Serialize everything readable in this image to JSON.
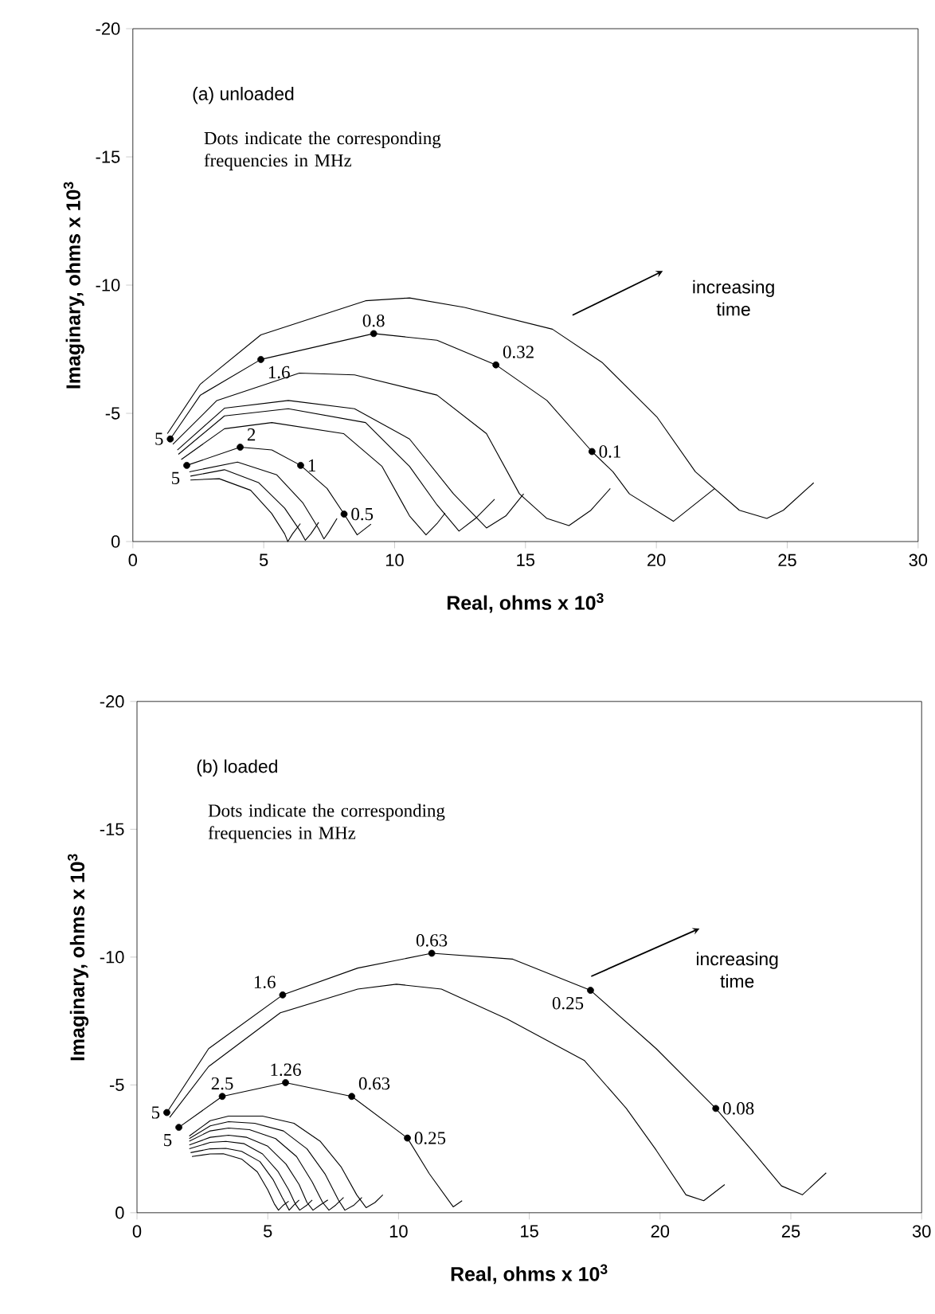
{
  "chart_data": [
    {
      "type": "line",
      "xlabel": "Real, ohms x 10$^{3}$",
      "ylabel": "Imaginary, ohms x 10$^{3}$",
      "xlim": [
        0,
        30
      ],
      "ylim": [
        0,
        -20
      ],
      "xticks": [
        0,
        5,
        10,
        15,
        20,
        25,
        30
      ],
      "yticks": [
        -20,
        -15,
        -10,
        -5,
        0
      ],
      "annotations": [
        "(a) unloaded",
        "Dots indicate the corresponding frequencies in MHz",
        "increasing time",
        {
          "text": "5",
          "x": 1.43,
          "y": -4.0
        },
        {
          "text": "1.6",
          "x": 4.89,
          "y": -7.1
        },
        {
          "text": "0.8",
          "x": 9.2,
          "y": -8.11
        },
        {
          "text": "0.32",
          "x": 13.87,
          "y": -6.89
        },
        {
          "text": "0.1",
          "x": 17.54,
          "y": -3.51
        },
        {
          "text": "2",
          "x": 4.1,
          "y": -3.68
        },
        {
          "text": "1",
          "x": 6.41,
          "y": -2.97
        },
        {
          "text": "0.5",
          "x": 8.07,
          "y": -1.07
        },
        {
          "text": "5",
          "x": 2.06,
          "y": -2.97
        }
      ],
      "series": [
        {
          "color": "#000000",
          "x": [
            1.32,
            2.58,
            4.89,
            8.89,
            10.57,
            12.67,
            16.03,
            17.92,
            20.02,
            21.49,
            23.17,
            24.22,
            24.85,
            26.01
          ],
          "values": [
            -4.21,
            -6.14,
            -8.06,
            -9.39,
            -9.5,
            -9.13,
            -8.28,
            -6.99,
            -4.86,
            -2.72,
            -1.22,
            -0.9,
            -1.22,
            -2.29
          ]
        },
        {
          "color": "#000000",
          "x": [
            1.43,
            2.58,
            4.89,
            9.2,
            11.62,
            13.87,
            15.82,
            17.54,
            18.34,
            18.97,
            20.65,
            22.23
          ],
          "values": [
            -4.0,
            -5.71,
            -7.1,
            -8.11,
            -7.85,
            -6.89,
            -5.5,
            -3.51,
            -2.72,
            -1.86,
            -0.79,
            -2.07
          ]
        },
        {
          "color": "#000000",
          "x": [
            1.53,
            3.21,
            6.36,
            8.47,
            11.62,
            13.51,
            14.77,
            15.82,
            16.66,
            17.5,
            18.24
          ],
          "values": [
            -3.79,
            -5.5,
            -6.57,
            -6.5,
            -5.71,
            -4.21,
            -1.86,
            -0.9,
            -0.62,
            -1.22,
            -2.07
          ]
        },
        {
          "color": "#000000",
          "x": [
            1.7,
            3.5,
            5.94,
            8.47,
            10.57,
            12.25,
            13.51,
            14.25,
            14.93
          ],
          "values": [
            -3.57,
            -5.2,
            -5.5,
            -5.18,
            -4.0,
            -1.86,
            -0.53,
            -1.0,
            -1.86
          ]
        },
        {
          "color": "#000000",
          "x": [
            1.74,
            3.5,
            5.94,
            8.89,
            10.57,
            11.62,
            12.46,
            13.09,
            13.82
          ],
          "values": [
            -3.4,
            -4.9,
            -5.18,
            -4.64,
            -2.93,
            -1.43,
            -0.41,
            -0.9,
            -1.65
          ]
        },
        {
          "color": "#000000",
          "x": [
            1.85,
            3.5,
            5.31,
            8.05,
            9.52,
            10.57,
            11.2,
            11.62,
            11.93
          ],
          "values": [
            -3.2,
            -4.4,
            -4.64,
            -4.21,
            -2.93,
            -1.0,
            -0.26,
            -0.7,
            -1.11
          ]
        },
        {
          "color": "#000000",
          "x": [
            2.06,
            4.1,
            5.31,
            6.41,
            7.42,
            8.07,
            8.57,
            9.1
          ],
          "values": [
            -2.97,
            -3.68,
            -3.57,
            -2.97,
            -2.07,
            -1.07,
            -0.26,
            -0.68
          ]
        },
        {
          "color": "#000000",
          "x": [
            2.16,
            4.0,
            5.5,
            6.5,
            7.1,
            7.3,
            7.5,
            7.8
          ],
          "values": [
            -2.72,
            -3.1,
            -2.6,
            -1.5,
            -0.5,
            -0.1,
            -0.4,
            -0.9
          ]
        },
        {
          "color": "#000000",
          "x": [
            2.2,
            3.5,
            4.8,
            5.8,
            6.4,
            6.59,
            6.8,
            7.1
          ],
          "values": [
            -2.55,
            -2.8,
            -2.3,
            -1.3,
            -0.4,
            -0.05,
            -0.3,
            -0.75
          ]
        },
        {
          "color": "#000000",
          "x": [
            2.2,
            3.3,
            4.5,
            5.3,
            5.8,
            5.92,
            6.1,
            6.4
          ],
          "values": [
            -2.4,
            -2.45,
            -2.0,
            -1.1,
            -0.3,
            0,
            -0.3,
            -0.7
          ]
        },
        {
          "type": "scatter",
          "color": "#000000",
          "x": [
            1.43,
            4.89,
            9.2,
            13.87,
            17.54,
            2.06,
            4.1,
            6.41,
            8.07
          ],
          "values": [
            -4.0,
            -7.1,
            -8.11,
            -6.89,
            -3.51,
            -2.97,
            -3.68,
            -2.97,
            -1.07
          ]
        }
      ]
    },
    {
      "type": "line",
      "xlabel": "Real, ohms x 10$^{3}$",
      "ylabel": "Imaginary, ohms x 10$^{3}$",
      "xlim": [
        0,
        30
      ],
      "ylim": [
        0,
        -20
      ],
      "xticks": [
        0,
        5,
        10,
        15,
        20,
        25,
        30
      ],
      "yticks": [
        -20,
        -15,
        -10,
        -5,
        0
      ],
      "annotations": [
        "(b) loaded",
        "Dots indicate the corresponding frequencies in MHz",
        "increasing time",
        {
          "text": "5",
          "x": 1.14,
          "y": -3.92
        },
        {
          "text": "1.6",
          "x": 5.57,
          "y": -8.52
        },
        {
          "text": "0.63",
          "x": 11.27,
          "y": -10.15
        },
        {
          "text": "0.25",
          "x": 17.34,
          "y": -8.7
        },
        {
          "text": "0.08",
          "x": 22.13,
          "y": -4.08
        },
        {
          "text": "2.5",
          "x": 3.26,
          "y": -4.55
        },
        {
          "text": "1.26",
          "x": 5.68,
          "y": -5.09
        },
        {
          "text": "0.63",
          "x": 8.21,
          "y": -4.55
        },
        {
          "text": "0.25",
          "x": 10.34,
          "y": -2.92
        },
        {
          "text": "5",
          "x": 1.6,
          "y": -3.34
        }
      ],
      "series": [
        {
          "color": "#000000",
          "x": [
            1.14,
            2.74,
            5.57,
            8.44,
            11.27,
            14.37,
            17.34,
            19.85,
            22.13,
            23.5,
            24.64,
            25.44,
            26.35
          ],
          "values": [
            -3.92,
            -6.42,
            -8.52,
            -9.57,
            -10.15,
            -9.92,
            -8.7,
            -6.42,
            -4.08,
            -2.45,
            -1.05,
            -0.7,
            -1.56
          ]
        },
        {
          "color": "#000000",
          "x": [
            1.25,
            2.74,
            5.48,
            8.44,
            9.92,
            11.64,
            14.15,
            17.11,
            18.71,
            19.85,
            20.99,
            21.67,
            22.47
          ],
          "values": [
            -3.73,
            -5.72,
            -7.82,
            -8.75,
            -8.94,
            -8.75,
            -7.58,
            -5.95,
            -4.08,
            -2.45,
            -0.7,
            -0.47,
            -1.1
          ]
        },
        {
          "color": "#000000",
          "x": [
            1.6,
            3.26,
            5.68,
            8.21,
            10.34,
            11.18,
            12.09,
            12.43
          ],
          "values": [
            -3.34,
            -4.55,
            -5.09,
            -4.55,
            -2.92,
            -1.52,
            -0.23,
            -0.47
          ]
        },
        {
          "color": "#000000",
          "x": [
            2.0,
            2.8,
            3.5,
            4.8,
            6.0,
            7.0,
            7.8,
            8.4,
            8.76,
            9.1,
            9.4
          ],
          "values": [
            -3.0,
            -3.6,
            -3.78,
            -3.78,
            -3.5,
            -2.8,
            -1.8,
            -0.7,
            -0.2,
            -0.4,
            -0.7
          ]
        },
        {
          "color": "#000000",
          "x": [
            2.0,
            2.8,
            3.5,
            4.5,
            5.6,
            6.5,
            7.2,
            7.7,
            7.95,
            8.3,
            8.6
          ],
          "values": [
            -2.9,
            -3.4,
            -3.56,
            -3.5,
            -3.2,
            -2.5,
            -1.5,
            -0.5,
            -0.1,
            -0.3,
            -0.6
          ]
        },
        {
          "color": "#000000",
          "x": [
            2.0,
            2.8,
            3.5,
            4.3,
            5.3,
            6.1,
            6.7,
            7.1,
            7.34,
            7.6,
            7.9
          ],
          "values": [
            -2.8,
            -3.2,
            -3.31,
            -3.25,
            -2.9,
            -2.2,
            -1.2,
            -0.4,
            -0.1,
            -0.3,
            -0.6
          ]
        },
        {
          "color": "#000000",
          "x": [
            2.0,
            2.8,
            3.5,
            4.2,
            5.0,
            5.7,
            6.2,
            6.5,
            6.73,
            7.0,
            7.3
          ],
          "values": [
            -2.65,
            -2.95,
            -3.03,
            -2.95,
            -2.6,
            -1.9,
            -1.1,
            -0.4,
            -0.1,
            -0.3,
            -0.5
          ]
        },
        {
          "color": "#000000",
          "x": [
            2.0,
            2.8,
            3.4,
            4.1,
            4.8,
            5.4,
            5.8,
            6.05,
            6.22,
            6.5,
            6.7
          ],
          "values": [
            -2.5,
            -2.75,
            -2.79,
            -2.7,
            -2.3,
            -1.6,
            -0.9,
            -0.35,
            -0.1,
            -0.3,
            -0.5
          ]
        },
        {
          "color": "#000000",
          "x": [
            2.05,
            2.8,
            3.4,
            4.0,
            4.7,
            5.2,
            5.55,
            5.82,
            6.0,
            6.2
          ],
          "values": [
            -2.35,
            -2.5,
            -2.52,
            -2.4,
            -2.0,
            -1.3,
            -0.6,
            -0.1,
            -0.3,
            -0.5
          ]
        },
        {
          "color": "#000000",
          "x": [
            2.1,
            2.8,
            3.3,
            4.0,
            4.6,
            5.0,
            5.25,
            5.41,
            5.6,
            5.8
          ],
          "values": [
            -2.2,
            -2.3,
            -2.31,
            -2.1,
            -1.6,
            -0.9,
            -0.35,
            -0.1,
            -0.3,
            -0.45
          ]
        },
        {
          "type": "scatter",
          "color": "#000000",
          "x": [
            1.14,
            5.57,
            11.27,
            17.34,
            22.13,
            1.6,
            3.26,
            5.68,
            8.21,
            10.34
          ],
          "values": [
            -3.92,
            -8.52,
            -10.15,
            -8.7,
            -4.08,
            -3.34,
            -4.55,
            -5.09,
            -4.55,
            -2.92
          ]
        }
      ]
    }
  ]
}
